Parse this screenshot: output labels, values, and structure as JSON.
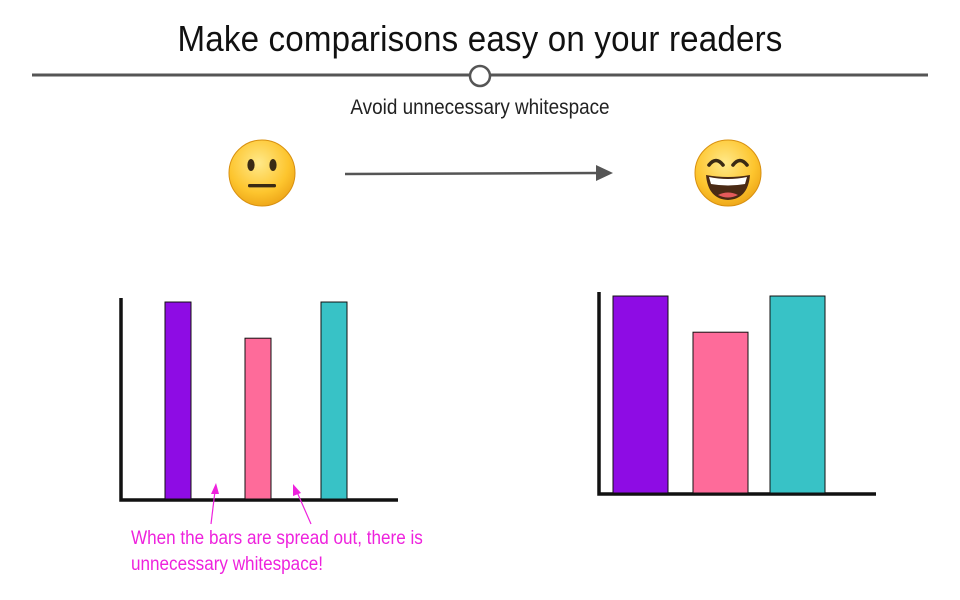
{
  "title": "Make comparisons easy on your readers",
  "subtitle": "Avoid unnecessary whitespace",
  "caption": {
    "line1": "When the bars are spread out, there is",
    "line2": "unnecessary whitespace!"
  },
  "colors": {
    "accent": "#ee22dd",
    "bar_purple": "#8e0ce4",
    "bar_pink": "#fe6b9a",
    "bar_teal": "#38c2c6",
    "divider": "#555555",
    "arrow": "#555555"
  },
  "icons": {
    "before": "neutral-face-icon",
    "after": "grinning-face-icon"
  },
  "chart_data": [
    {
      "type": "bar",
      "categories": [
        "",
        "",
        ""
      ],
      "values": [
        98,
        80,
        98
      ],
      "colors": [
        "#8e0ce4",
        "#fe6b9a",
        "#38c2c6"
      ],
      "ylim": [
        0,
        100
      ],
      "spacing": "spread-out"
    },
    {
      "type": "bar",
      "categories": [
        "",
        "",
        ""
      ],
      "values": [
        98,
        80,
        98
      ],
      "colors": [
        "#8e0ce4",
        "#fe6b9a",
        "#38c2c6"
      ],
      "ylim": [
        0,
        100
      ],
      "spacing": "compact"
    }
  ]
}
